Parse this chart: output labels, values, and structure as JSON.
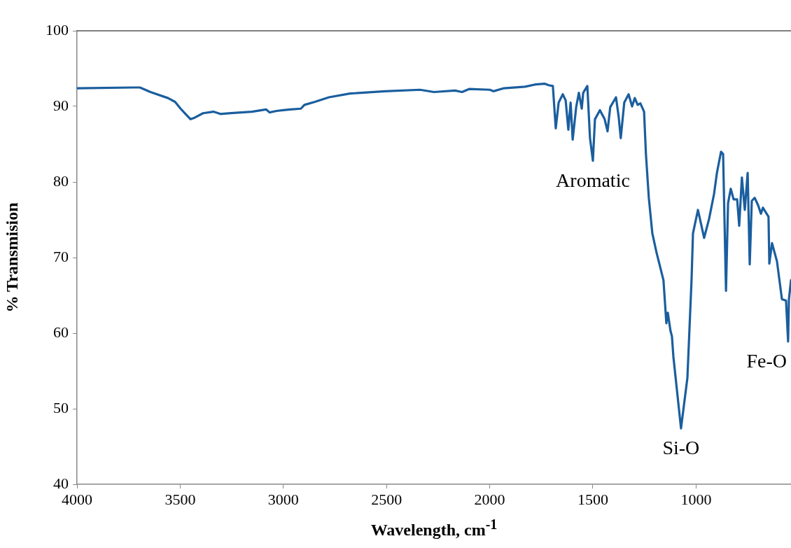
{
  "chart_data": {
    "type": "line",
    "xlabel": "Wavelength, cm$^{-1}$",
    "ylabel": "% Transmision",
    "xlim": [
      4000,
      540
    ],
    "xticks": [
      4000,
      3500,
      3000,
      2500,
      2000,
      1500,
      1000
    ],
    "ylim": [
      40,
      100
    ],
    "yticks": [
      40,
      50,
      60,
      70,
      80,
      90,
      100
    ],
    "grid": false,
    "legend": false,
    "marker": "none",
    "line_style": "solid",
    "annotations": [
      {
        "text": "Aromatic",
        "x": 1500,
        "y": 82.8
      },
      {
        "text": "Si-O",
        "x": 1073,
        "y": 47.4
      },
      {
        "text": "Fe-O",
        "x": 554,
        "y": 58.9
      }
    ],
    "series": [
      {
        "color": "#1a5e9e",
        "x": [
          4000,
          3729,
          3695,
          3644,
          3559,
          3525,
          3498,
          3474,
          3450,
          3430,
          3389,
          3339,
          3305,
          3254,
          3152,
          3084,
          3067,
          3033,
          3000,
          2966,
          2915,
          2898,
          2847,
          2779,
          2677,
          2507,
          2338,
          2270,
          2168,
          2134,
          2100,
          1999,
          1982,
          1931,
          1829,
          1778,
          1734,
          1714,
          1694,
          1680,
          1666,
          1646,
          1632,
          1619,
          1608,
          1598,
          1581,
          1568,
          1554,
          1547,
          1527,
          1514,
          1500,
          1490,
          1466,
          1443,
          1429,
          1416,
          1388,
          1375,
          1365,
          1348,
          1327,
          1310,
          1297,
          1283,
          1270,
          1252,
          1243,
          1229,
          1212,
          1192,
          1158,
          1144,
          1137,
          1124,
          1117,
          1110,
          1073,
          1042,
          1022,
          1015,
          991,
          961,
          937,
          913,
          899,
          879,
          869,
          855,
          845,
          832,
          818,
          801,
          791,
          778,
          764,
          750,
          740,
          730,
          716,
          699,
          686,
          676,
          649,
          645,
          632,
          608,
          584,
          564,
          554,
          550,
          540
        ],
        "values": [
          92.4,
          92.5,
          92.5,
          91.9,
          91.1,
          90.6,
          89.7,
          89.0,
          88.3,
          88.5,
          89.1,
          89.3,
          89.0,
          89.1,
          89.3,
          89.6,
          89.2,
          89.4,
          89.5,
          89.6,
          89.7,
          90.2,
          90.6,
          91.2,
          91.7,
          92.0,
          92.2,
          91.9,
          92.1,
          91.9,
          92.3,
          92.2,
          92.0,
          92.4,
          92.6,
          92.9,
          93.0,
          92.8,
          92.7,
          87.1,
          90.5,
          91.6,
          90.8,
          86.9,
          90.5,
          85.6,
          89.9,
          91.8,
          89.7,
          91.8,
          92.7,
          85.8,
          82.8,
          88.3,
          89.5,
          88.3,
          86.7,
          89.9,
          91.2,
          88.6,
          85.8,
          90.5,
          91.6,
          90.0,
          91.1,
          90.2,
          90.4,
          89.3,
          83.7,
          77.9,
          73.2,
          70.7,
          67.0,
          61.3,
          62.7,
          60.3,
          59.6,
          56.9,
          47.4,
          54.1,
          67.0,
          73.2,
          76.3,
          72.6,
          75.1,
          78.4,
          81.2,
          84.0,
          83.7,
          65.6,
          77.2,
          79.1,
          77.7,
          77.7,
          74.2,
          80.6,
          76.3,
          81.2,
          69.1,
          77.5,
          77.9,
          76.9,
          75.8,
          76.6,
          75.4,
          69.2,
          71.9,
          69.5,
          64.5,
          64.3,
          58.9,
          64.5,
          67.0
        ]
      }
    ]
  }
}
